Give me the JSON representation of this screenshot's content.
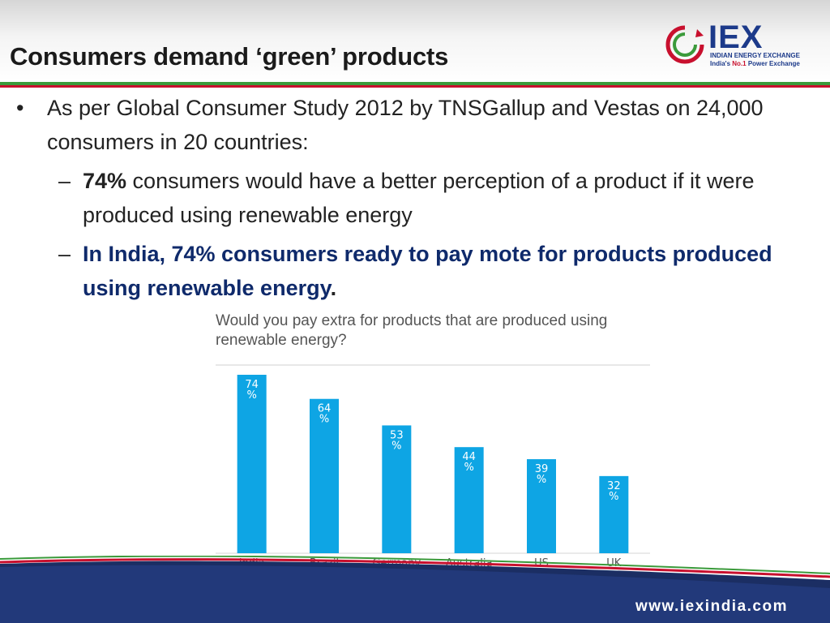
{
  "slide": {
    "title": "Consumers demand ‘green’ products",
    "logo": {
      "text": "IEX",
      "sub1": "INDIAN ENERGY EXCHANGE",
      "sub2_prefix": "India's ",
      "sub2_highlight": "No.1",
      "sub2_suffix": " Power Exchange"
    },
    "bullets": {
      "b1_marker": "•",
      "b1_text": "As per Global Consumer Study 2012 by TNSGallup and Vestas on 24,000 consumers in 20 countries:",
      "dash_marker": "–",
      "b2a_bold": "74%",
      "b2a_text": " consumers would have a better perception of a product if it were produced using renewable energy",
      "b2b_text": "In India, 74% consumers ready to pay mote for products produced using renewable energy",
      "b2b_period": "."
    },
    "footer": {
      "url": "www.iexindia.com"
    },
    "colors": {
      "bar": "#0ea5e4",
      "navy": "#0f2a6b",
      "green": "#3b9a3b",
      "red": "#c8102e"
    }
  },
  "chart_data": {
    "type": "bar",
    "title": "Would you pay extra for products that are produced using renewable energy?",
    "categories": [
      "India",
      "Brazil",
      "Germany",
      "Australia",
      "US",
      "UK"
    ],
    "values": [
      74,
      64,
      53,
      44,
      39,
      32
    ],
    "value_labels": [
      "74\n%",
      "64\n%",
      "53\n%",
      "44\n%",
      "39\n%",
      "32\n%"
    ],
    "xlabel": "",
    "ylabel": "",
    "ylim": [
      0,
      80
    ],
    "grid": false,
    "legend": "none"
  }
}
